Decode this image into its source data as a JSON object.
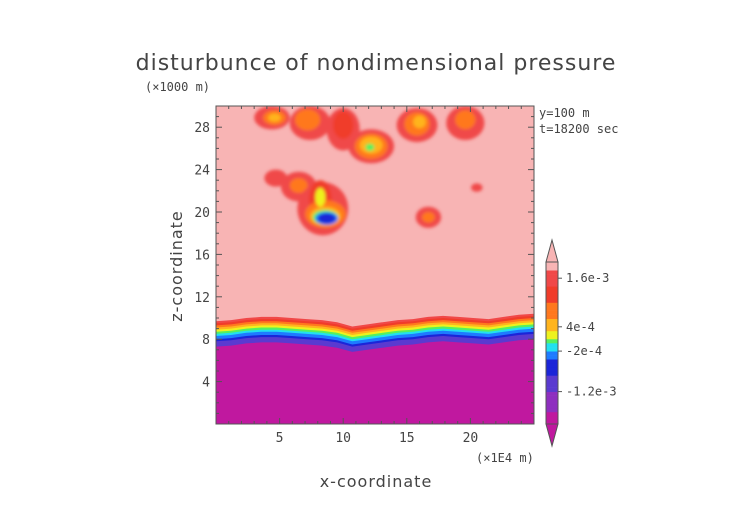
{
  "chart_data": {
    "type": "heatmap",
    "title": "disturbunce of nondimensional pressure",
    "xlabel": "x-coordinate",
    "ylabel": "z-coordinate",
    "x_unit": "(×1E4 m)",
    "y_unit": "(×1000 m)",
    "xlim": [
      0,
      25
    ],
    "ylim": [
      0,
      30
    ],
    "x_ticks": [
      5,
      10,
      15,
      20
    ],
    "y_ticks": [
      4,
      8,
      12,
      16,
      20,
      24,
      28
    ],
    "annotations": [
      "y=100 m",
      "t=18200 sec"
    ],
    "colorbar": {
      "min": -0.002,
      "max": 0.002,
      "labeled_levels": [
        {
          "value": 0.0016,
          "label": "1.6e-3"
        },
        {
          "value": 0.0004,
          "label": "4e-4"
        },
        {
          "value": -0.0002,
          "label": "-2e-4"
        },
        {
          "value": -0.0012,
          "label": "-1.2e-3"
        }
      ],
      "stops": [
        {
          "value": -0.002,
          "color": "#c0189f"
        },
        {
          "value": -0.0015,
          "color": "#8e2fbf"
        },
        {
          "value": -0.001,
          "color": "#5a3ad0"
        },
        {
          "value": -0.0006,
          "color": "#1b25d8"
        },
        {
          "value": -0.0003,
          "color": "#1e7bff"
        },
        {
          "value": -0.0001,
          "color": "#22e0f0"
        },
        {
          "value": 0,
          "color": "#55f060"
        },
        {
          "value": 0.00015,
          "color": "#eef21e"
        },
        {
          "value": 0.0004,
          "color": "#ffb41e"
        },
        {
          "value": 0.0008,
          "color": "#ff781e"
        },
        {
          "value": 0.0012,
          "color": "#f03c2a"
        },
        {
          "value": 0.0016,
          "color": "#f04848"
        },
        {
          "value": 0.002,
          "color": "#f8b4b4"
        }
      ]
    },
    "field": {
      "background_value": 0.002,
      "base_layer_value": -0.002,
      "boundary_levels": [
        {
          "value": 0.0016,
          "top": [
            9.7,
            9.8,
            10.0,
            10.1,
            10.1,
            10.0,
            9.9,
            9.8,
            9.6,
            9.2,
            9.4,
            9.6,
            9.8,
            9.9,
            10.1,
            10.2,
            10.1,
            10.0,
            9.9,
            10.1,
            10.3,
            10.4
          ]
        },
        {
          "value": 0.0012,
          "top": [
            9.5,
            9.6,
            9.8,
            9.9,
            9.9,
            9.8,
            9.7,
            9.6,
            9.4,
            9.0,
            9.2,
            9.4,
            9.6,
            9.7,
            9.9,
            10.0,
            9.9,
            9.8,
            9.7,
            9.9,
            10.1,
            10.2
          ]
        },
        {
          "value": 0.0008,
          "top": [
            9.3,
            9.4,
            9.6,
            9.7,
            9.7,
            9.6,
            9.5,
            9.4,
            9.2,
            8.8,
            9.0,
            9.2,
            9.4,
            9.5,
            9.7,
            9.8,
            9.7,
            9.6,
            9.5,
            9.7,
            9.9,
            10.0
          ]
        },
        {
          "value": 0.0004,
          "top": [
            9.1,
            9.2,
            9.4,
            9.5,
            9.5,
            9.4,
            9.3,
            9.2,
            9.0,
            8.6,
            8.8,
            9.0,
            9.2,
            9.3,
            9.5,
            9.6,
            9.5,
            9.4,
            9.3,
            9.5,
            9.7,
            9.8
          ]
        },
        {
          "value": 0.00015,
          "top": [
            8.9,
            9.0,
            9.2,
            9.3,
            9.3,
            9.2,
            9.1,
            9.0,
            8.8,
            8.4,
            8.6,
            8.8,
            9.0,
            9.1,
            9.3,
            9.4,
            9.3,
            9.2,
            9.1,
            9.3,
            9.5,
            9.6
          ]
        },
        {
          "value": 0,
          "top": [
            8.7,
            8.8,
            9.0,
            9.1,
            9.1,
            9.0,
            8.9,
            8.8,
            8.6,
            8.2,
            8.4,
            8.6,
            8.8,
            8.9,
            9.1,
            9.2,
            9.1,
            9.0,
            8.9,
            9.1,
            9.3,
            9.4
          ]
        },
        {
          "value": -0.0001,
          "top": [
            8.5,
            8.6,
            8.8,
            8.9,
            8.9,
            8.8,
            8.7,
            8.6,
            8.4,
            8.0,
            8.2,
            8.4,
            8.6,
            8.7,
            8.9,
            9.0,
            8.9,
            8.8,
            8.7,
            8.9,
            9.1,
            9.2
          ]
        },
        {
          "value": -0.0003,
          "top": [
            8.3,
            8.4,
            8.6,
            8.7,
            8.7,
            8.6,
            8.5,
            8.4,
            8.2,
            7.8,
            8.0,
            8.2,
            8.4,
            8.5,
            8.7,
            8.8,
            8.7,
            8.6,
            8.5,
            8.7,
            8.9,
            9.0
          ]
        },
        {
          "value": -0.0006,
          "top": [
            8.0,
            8.1,
            8.3,
            8.4,
            8.4,
            8.3,
            8.2,
            8.1,
            7.9,
            7.5,
            7.7,
            7.9,
            8.1,
            8.2,
            8.4,
            8.5,
            8.4,
            8.3,
            8.2,
            8.4,
            8.6,
            8.7
          ]
        },
        {
          "value": -0.0012,
          "top": [
            7.8,
            7.9,
            8.1,
            8.2,
            8.2,
            8.1,
            8.0,
            7.9,
            7.7,
            7.3,
            7.5,
            7.7,
            7.9,
            8.0,
            8.2,
            8.3,
            8.2,
            8.1,
            8.0,
            8.2,
            8.4,
            8.5
          ]
        }
      ],
      "blobs": [
        {
          "x": 4.4,
          "z": 28.9,
          "rx": 1.4,
          "rz": 1.1,
          "value": 0.0016
        },
        {
          "x": 4.6,
          "z": 28.9,
          "rx": 0.9,
          "rz": 0.7,
          "value": 0.0008
        },
        {
          "x": 4.6,
          "z": 28.9,
          "rx": 0.5,
          "rz": 0.4,
          "value": 0.0004
        },
        {
          "x": 7.4,
          "z": 28.4,
          "rx": 1.6,
          "rz": 1.6,
          "value": 0.0016
        },
        {
          "x": 7.2,
          "z": 28.7,
          "rx": 1.0,
          "rz": 1.0,
          "value": 0.0008
        },
        {
          "x": 10.0,
          "z": 27.8,
          "rx": 1.3,
          "rz": 2.0,
          "value": 0.0016
        },
        {
          "x": 10.0,
          "z": 28.2,
          "rx": 0.8,
          "rz": 1.3,
          "value": 0.0012
        },
        {
          "x": 12.2,
          "z": 26.2,
          "rx": 1.8,
          "rz": 1.6,
          "value": 0.0016
        },
        {
          "x": 12.2,
          "z": 26.2,
          "rx": 1.3,
          "rz": 1.2,
          "value": 0.0008
        },
        {
          "x": 12.2,
          "z": 26.3,
          "rx": 0.9,
          "rz": 0.8,
          "value": 0.0004
        },
        {
          "x": 12.1,
          "z": 26.1,
          "rx": 0.35,
          "rz": 0.35,
          "value": 0
        },
        {
          "x": 15.8,
          "z": 28.2,
          "rx": 1.6,
          "rz": 1.6,
          "value": 0.0016
        },
        {
          "x": 15.8,
          "z": 28.3,
          "rx": 1.0,
          "rz": 1.1,
          "value": 0.0008
        },
        {
          "x": 16.0,
          "z": 28.5,
          "rx": 0.5,
          "rz": 0.6,
          "value": 0.0004
        },
        {
          "x": 19.6,
          "z": 28.4,
          "rx": 1.5,
          "rz": 1.6,
          "value": 0.0016
        },
        {
          "x": 19.6,
          "z": 28.7,
          "rx": 0.8,
          "rz": 0.9,
          "value": 0.0008
        },
        {
          "x": 4.7,
          "z": 23.2,
          "rx": 0.9,
          "rz": 0.8,
          "value": 0.0016
        },
        {
          "x": 6.5,
          "z": 22.4,
          "rx": 1.4,
          "rz": 1.4,
          "value": 0.0016
        },
        {
          "x": 6.5,
          "z": 22.5,
          "rx": 0.7,
          "rz": 0.7,
          "value": 0.0008
        },
        {
          "x": 8.4,
          "z": 20.3,
          "rx": 2.0,
          "rz": 2.5,
          "value": 0.0016
        },
        {
          "x": 8.2,
          "z": 21.2,
          "rx": 0.9,
          "rz": 1.8,
          "value": 0.0012
        },
        {
          "x": 8.6,
          "z": 19.8,
          "rx": 1.6,
          "rz": 1.3,
          "value": 0.0008
        },
        {
          "x": 8.6,
          "z": 19.6,
          "rx": 1.2,
          "rz": 0.9,
          "value": 0.0004
        },
        {
          "x": 8.2,
          "z": 21.4,
          "rx": 0.4,
          "rz": 0.9,
          "value": 0.00015
        },
        {
          "x": 8.6,
          "z": 19.5,
          "rx": 1.0,
          "rz": 0.7,
          "value": 0
        },
        {
          "x": 8.7,
          "z": 19.4,
          "rx": 0.9,
          "rz": 0.6,
          "value": -0.0003
        },
        {
          "x": 8.7,
          "z": 19.4,
          "rx": 0.7,
          "rz": 0.5,
          "value": -0.0006
        },
        {
          "x": 16.7,
          "z": 19.5,
          "rx": 1.0,
          "rz": 1.0,
          "value": 0.0016
        },
        {
          "x": 16.7,
          "z": 19.5,
          "rx": 0.5,
          "rz": 0.5,
          "value": 0.0008
        },
        {
          "x": 20.5,
          "z": 22.3,
          "rx": 0.45,
          "rz": 0.4,
          "value": 0.0016
        }
      ]
    }
  }
}
